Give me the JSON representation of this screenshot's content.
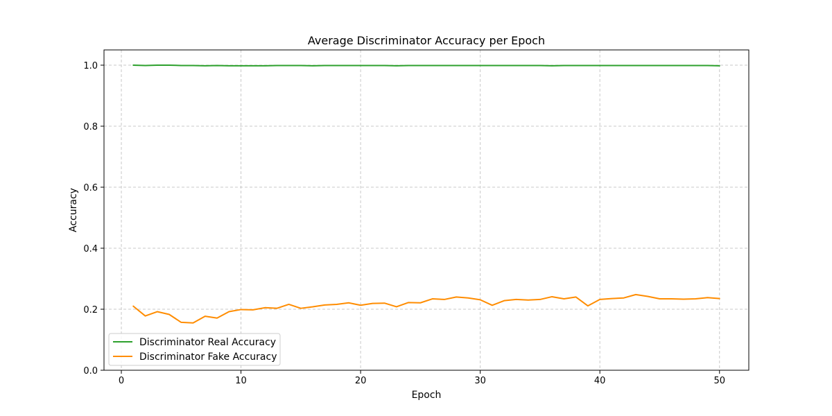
{
  "chart_data": {
    "type": "line",
    "title": "Average Discriminator Accuracy per Epoch",
    "xlabel": "Epoch",
    "ylabel": "Accuracy",
    "xlim": [
      -1.45,
      52.45
    ],
    "ylim": [
      0,
      1.05
    ],
    "xticks": [
      0,
      10,
      20,
      30,
      40,
      50
    ],
    "xtick_labels": [
      "0",
      "10",
      "20",
      "30",
      "40",
      "50"
    ],
    "yticks": [
      0.0,
      0.2,
      0.4,
      0.6,
      0.8,
      1.0
    ],
    "ytick_labels": [
      "0.0",
      "0.2",
      "0.4",
      "0.6",
      "0.8",
      "1.0"
    ],
    "grid": true,
    "legend_position": "lower-left",
    "x": [
      1,
      2,
      3,
      4,
      5,
      6,
      7,
      8,
      9,
      10,
      11,
      12,
      13,
      14,
      15,
      16,
      17,
      18,
      19,
      20,
      21,
      22,
      23,
      24,
      25,
      26,
      27,
      28,
      29,
      30,
      31,
      32,
      33,
      34,
      35,
      36,
      37,
      38,
      39,
      40,
      41,
      42,
      43,
      44,
      45,
      46,
      47,
      48,
      49,
      50
    ],
    "series": [
      {
        "name": "Discriminator Real Accuracy",
        "color": "#2ca02c",
        "values": [
          1.0,
          0.999,
          1.0,
          1.0,
          0.999,
          0.999,
          0.998,
          0.999,
          0.998,
          0.998,
          0.998,
          0.998,
          0.999,
          0.999,
          0.999,
          0.998,
          0.999,
          0.999,
          0.999,
          0.999,
          0.999,
          0.999,
          0.998,
          0.999,
          0.999,
          0.999,
          0.999,
          0.999,
          0.999,
          0.999,
          0.999,
          0.999,
          0.999,
          0.999,
          0.999,
          0.998,
          0.999,
          0.999,
          0.999,
          0.999,
          0.999,
          0.999,
          0.999,
          0.999,
          0.999,
          0.999,
          0.999,
          0.999,
          0.999,
          0.998
        ]
      },
      {
        "name": "Discriminator Fake Accuracy",
        "color": "#ff8c00",
        "values": [
          0.21,
          0.178,
          0.192,
          0.183,
          0.157,
          0.155,
          0.177,
          0.171,
          0.192,
          0.199,
          0.198,
          0.205,
          0.203,
          0.216,
          0.203,
          0.208,
          0.214,
          0.216,
          0.221,
          0.213,
          0.219,
          0.22,
          0.208,
          0.222,
          0.221,
          0.234,
          0.232,
          0.24,
          0.237,
          0.231,
          0.213,
          0.228,
          0.232,
          0.23,
          0.232,
          0.241,
          0.234,
          0.24,
          0.211,
          0.232,
          0.235,
          0.237,
          0.248,
          0.242,
          0.234,
          0.234,
          0.233,
          0.234,
          0.238,
          0.235
        ]
      }
    ]
  }
}
